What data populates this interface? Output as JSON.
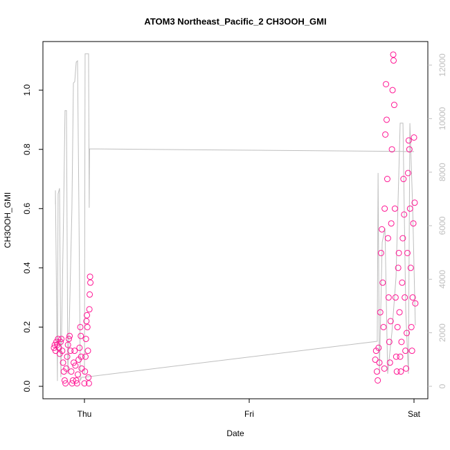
{
  "chart_data": {
    "type": "scatter",
    "title": "ATOM3 Northeast_Pacific_2 CH3OOH_GMI",
    "xlabel": "Date",
    "ylabel": "CH3OOH_GMI",
    "xlim": [
      -0.252,
      2.084
    ],
    "xticks": [
      {
        "value": 0,
        "label": "Thu"
      },
      {
        "value": 1,
        "label": "Fri"
      },
      {
        "value": 2,
        "label": "Sat"
      }
    ],
    "ylim": [
      -0.042,
      1.164
    ],
    "yticks": [
      {
        "value": 0,
        "label": "0.0"
      },
      0.2,
      0.4,
      0.6,
      0.8,
      {
        "value": 1,
        "label": "1.0"
      }
    ],
    "y2lim": [
      -466,
      12880
    ],
    "y2ticks": [
      0,
      2000,
      4000,
      6000,
      8000,
      10000,
      12000
    ],
    "series": [
      {
        "color": "#ff1493",
        "x": [
          -0.185,
          -0.18,
          -0.175,
          -0.17,
          -0.165,
          -0.16,
          -0.155,
          -0.15,
          -0.145,
          -0.14,
          -0.135,
          -0.13,
          -0.125,
          -0.12,
          -0.115,
          -0.11,
          -0.105,
          -0.1,
          -0.095,
          -0.09,
          -0.085,
          -0.08,
          -0.075,
          -0.07,
          -0.065,
          -0.06,
          -0.055,
          -0.05,
          -0.045,
          -0.04,
          -0.035,
          -0.03,
          -0.025,
          -0.022,
          -0.02,
          -0.017,
          0.0,
          0.003,
          0.006,
          0.009,
          0.012,
          0.015,
          0.018,
          0.021,
          0.024,
          0.027,
          0.03,
          0.032,
          0.034,
          0.036,
          1.765,
          1.77,
          1.775,
          1.78,
          1.785,
          1.79,
          1.795,
          1.8,
          1.805,
          1.81,
          1.815,
          1.82,
          1.822,
          1.826,
          1.83,
          1.834,
          1.838,
          1.842,
          1.846,
          1.85,
          1.854,
          1.858,
          1.862,
          1.866,
          1.87,
          1.874,
          1.876,
          1.88,
          1.884,
          1.888,
          1.892,
          1.896,
          1.9,
          1.904,
          1.908,
          1.912,
          1.916,
          1.92,
          1.924,
          1.928,
          1.932,
          1.936,
          1.94,
          1.944,
          1.948,
          1.952,
          1.956,
          1.96,
          1.964,
          1.968,
          1.972,
          1.976,
          1.98,
          1.984,
          1.988,
          1.992,
          1.996,
          2.0,
          2.004,
          2.008
        ],
        "values": [
          0.13,
          0.14,
          0.12,
          0.15,
          0.14,
          0.16,
          0.13,
          0.11,
          0.15,
          0.16,
          0.12,
          0.08,
          0.05,
          0.02,
          0.01,
          0.06,
          0.1,
          0.14,
          0.16,
          0.17,
          0.12,
          0.05,
          0.01,
          0.02,
          0.08,
          0.12,
          0.07,
          0.02,
          0.01,
          0.04,
          0.09,
          0.13,
          0.2,
          0.17,
          0.1,
          0.06,
          0.01,
          0.05,
          0.1,
          0.16,
          0.22,
          0.24,
          0.2,
          0.12,
          0.03,
          0.01,
          0.26,
          0.31,
          0.37,
          0.35,
          0.09,
          0.12,
          0.05,
          0.02,
          0.13,
          0.08,
          0.25,
          0.45,
          0.53,
          0.35,
          0.2,
          0.06,
          0.6,
          0.85,
          1.02,
          0.9,
          0.7,
          0.5,
          0.3,
          0.15,
          0.08,
          0.22,
          0.55,
          0.8,
          1.0,
          1.12,
          1.1,
          0.95,
          0.6,
          0.3,
          0.1,
          0.05,
          0.2,
          0.4,
          0.45,
          0.25,
          0.1,
          0.05,
          0.15,
          0.35,
          0.5,
          0.7,
          0.58,
          0.3,
          0.12,
          0.06,
          0.18,
          0.45,
          0.72,
          0.83,
          0.8,
          0.6,
          0.4,
          0.2,
          0.12,
          0.3,
          0.55,
          0.84,
          0.62,
          0.28
        ]
      },
      {
        "color": "#bebebe",
        "axis": "y2",
        "line": true,
        "x": [
          -0.176,
          -0.176,
          -0.164,
          -0.16,
          -0.151,
          -0.143,
          -0.126,
          -0.118,
          -0.109,
          -0.101,
          -0.092,
          -0.076,
          -0.067,
          -0.059,
          -0.05,
          -0.042,
          -0.034,
          -0.025,
          -0.017,
          0.0,
          1.777,
          1.782,
          1.79,
          1.807,
          1.824,
          1.84,
          1.866,
          1.891,
          1.916,
          1.933,
          1.95,
          1.966,
          1.975,
          1.992,
          2.008,
          null,
          0.0,
          0.004,
          0.025,
          0.029,
          0.031,
          2.0
        ],
        "values": [
          6800,
          7320,
          200,
          7190,
          7400,
          340,
          6670,
          10300,
          10300,
          470,
          2280,
          6670,
          11330,
          11380,
          12110,
          12160,
          6930,
          210,
          340,
          340,
          1680,
          7970,
          470,
          5380,
          5900,
          470,
          2020,
          4090,
          9830,
          9830,
          2790,
          470,
          9830,
          6670,
          2280,
          null,
          470,
          12420,
          12420,
          6670,
          8870,
          8770
        ]
      }
    ]
  }
}
